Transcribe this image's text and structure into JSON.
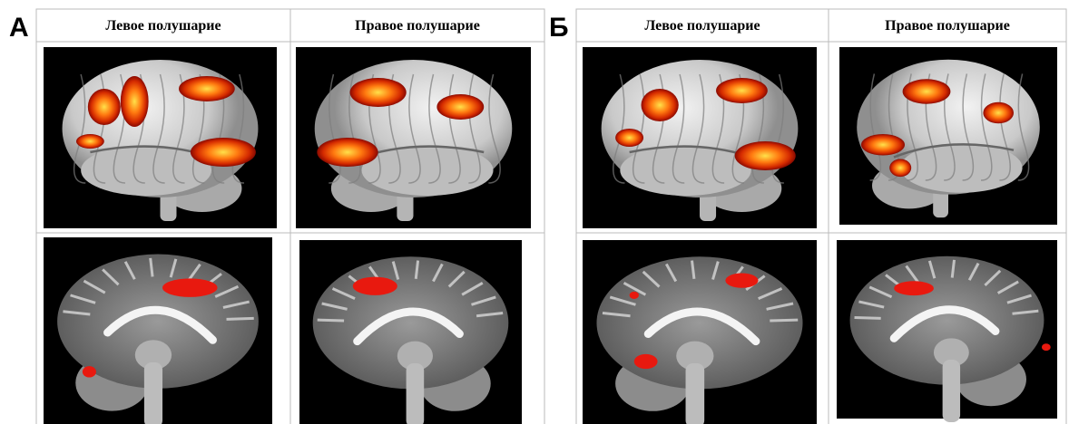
{
  "panels": [
    {
      "label": "А",
      "headers": [
        "Левое полушарие",
        "Правое полушарие"
      ]
    },
    {
      "label": "Б",
      "headers": [
        "Левое полушарие",
        "Правое полушарие"
      ]
    }
  ]
}
